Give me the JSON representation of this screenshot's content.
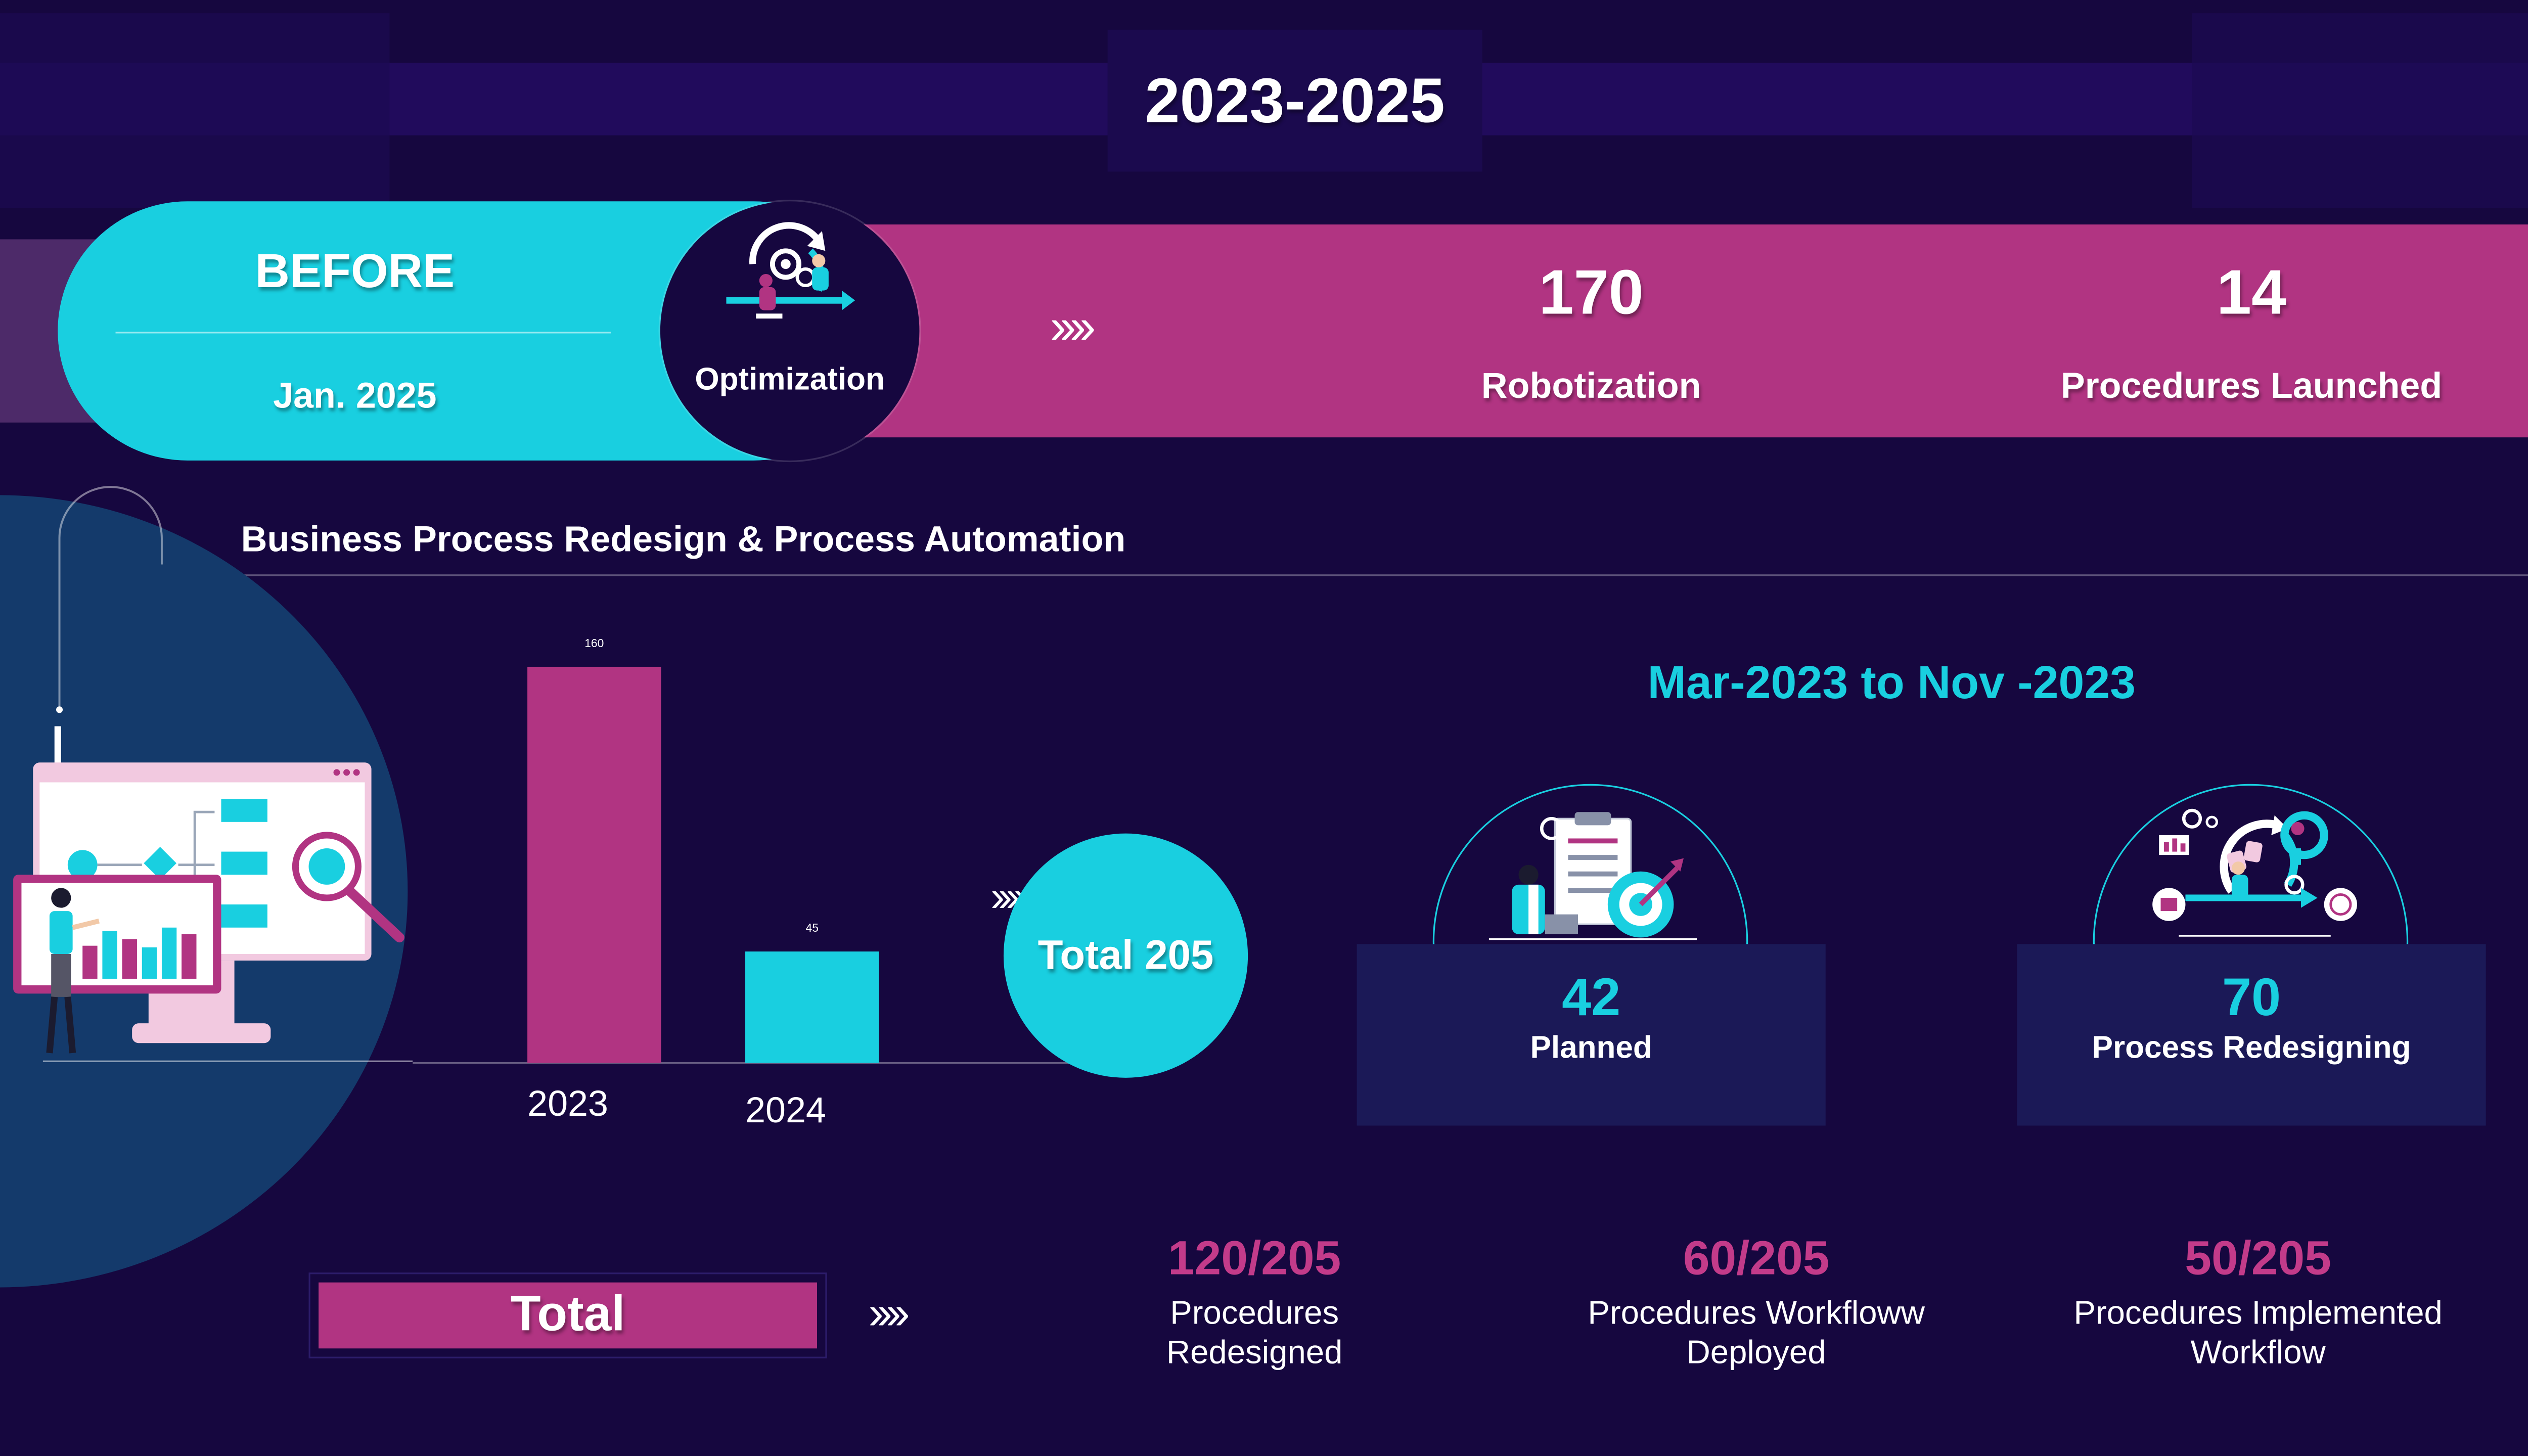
{
  "header": {
    "title": "2023-2025"
  },
  "before_banner": {
    "label": "BEFORE",
    "date": "Jan. 2025",
    "badge_label": "Optimization",
    "arrows": "››››",
    "stats": [
      {
        "value": "170",
        "label": "Robotization"
      },
      {
        "value": "14",
        "label": "Procedures Launched"
      }
    ]
  },
  "section": {
    "arrows": "››››",
    "title": "Business Process Redesign & Process Automation"
  },
  "chart_data": {
    "type": "bar",
    "categories": [
      "2023",
      "2024"
    ],
    "values": [
      160,
      45
    ],
    "title": "",
    "xlabel": "",
    "ylabel": "",
    "ylim": [
      0,
      170
    ],
    "grid": false,
    "colors": [
      "#b13482",
      "#19cfe0"
    ]
  },
  "total_circle": {
    "arrows": "››››",
    "label": "Total 205"
  },
  "period": {
    "title": "Mar-2023 to Nov -2023"
  },
  "cards": [
    {
      "value": "42",
      "label": "Planned",
      "icon": "target-checklist-icon"
    },
    {
      "value": "70",
      "label": "Process Redesigning",
      "icon": "process-gear-icon"
    }
  ],
  "totals": {
    "label": "Total",
    "arrows": "››››",
    "items": [
      {
        "value": "120/205",
        "line1": "Procedures",
        "line2": "Redesigned"
      },
      {
        "value": "60/205",
        "line1": "Procedures Workfloww",
        "line2": "Deployed"
      },
      {
        "value": "50/205",
        "line1": "Procedures Implemented",
        "line2": "Workflow"
      }
    ]
  },
  "colors": {
    "background": "#16073f",
    "cyan": "#19cfe0",
    "magenta": "#b13482",
    "navy_card": "#1b1957",
    "value_pink": "#c33b8a"
  }
}
